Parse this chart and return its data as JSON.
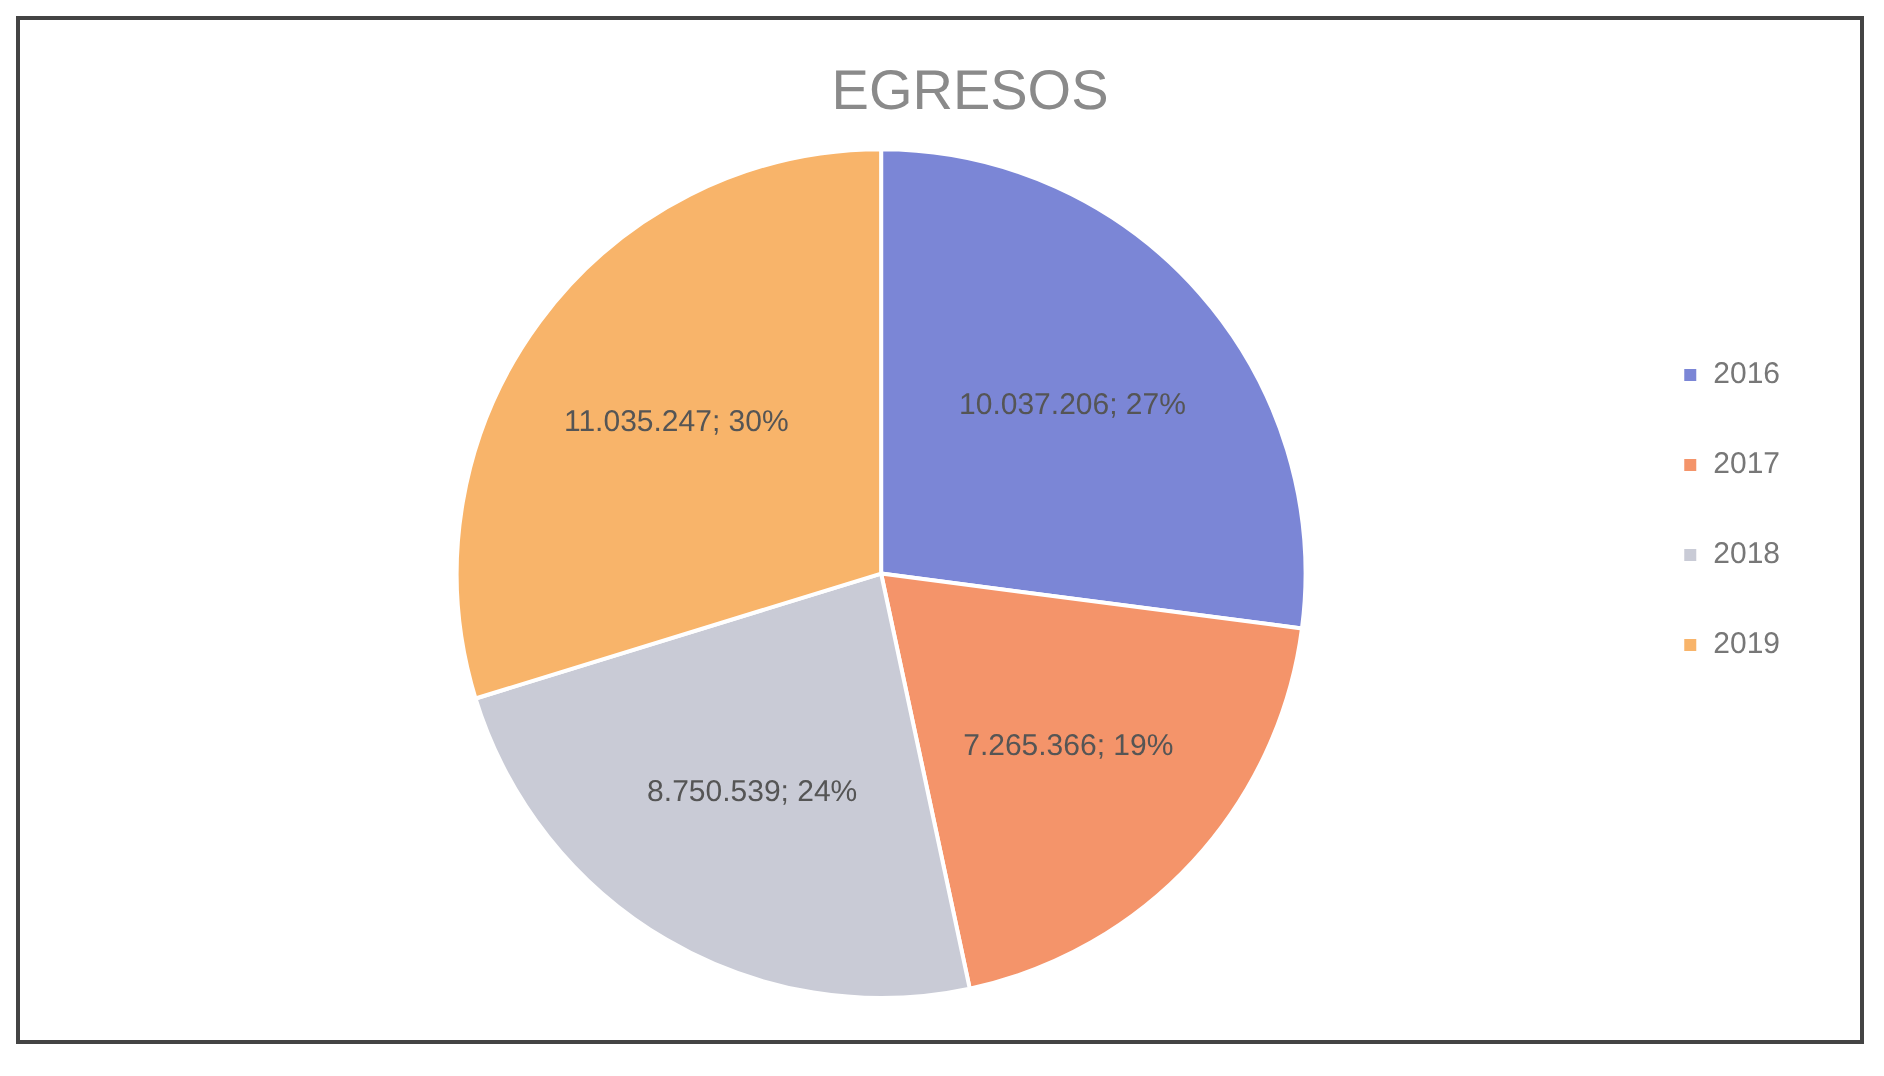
{
  "chart_data": {
    "type": "pie",
    "title": "EGRESOS",
    "categories": [
      "2016",
      "2017",
      "2018",
      "2019"
    ],
    "values": [
      10037206,
      7265366,
      8750539,
      11035247
    ],
    "colors": [
      "#7b86d6",
      "#f4946a",
      "#c9cbd6",
      "#f8b46a"
    ],
    "value_labels": [
      "10.037.206; 27%",
      "7.265.366; 19%",
      "8.750.539; 24%",
      "11.035.247; 30%"
    ],
    "legend": "right"
  }
}
